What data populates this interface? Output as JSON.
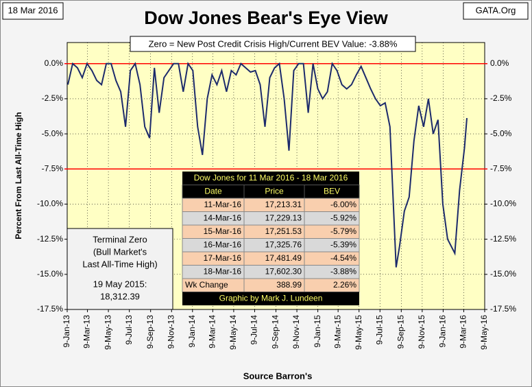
{
  "chart_data": {
    "type": "line",
    "title": "Dow Jones Bear's Eye View",
    "date_label": "18 Mar 2016",
    "source_label": "GATA.Org",
    "subtitle": "Zero = New Post Credit Crisis High/Current BEV Value:  -3.88%",
    "y_label": "Percent From Last All-Time High",
    "x_label": "Source Barron's",
    "ylim": [
      -17.5,
      1.5
    ],
    "yticks": [
      {
        "value": 0,
        "label": "0.0%"
      },
      {
        "value": -2.5,
        "label": "-2.5%"
      },
      {
        "value": -5,
        "label": "-5.0%"
      },
      {
        "value": -7.5,
        "label": "-7.5%"
      },
      {
        "value": -10,
        "label": "-10.0%"
      },
      {
        "value": -12.5,
        "label": "-12.5%"
      },
      {
        "value": -15,
        "label": "-15.0%"
      },
      {
        "value": -17.5,
        "label": "-17.5%"
      }
    ],
    "xlim": [
      "2013-01-09",
      "2016-05-09"
    ],
    "xticks": [
      {
        "value": "2013-01-09",
        "label": "9-Jan-13"
      },
      {
        "value": "2013-03-09",
        "label": "9-Mar-13"
      },
      {
        "value": "2013-05-09",
        "label": "9-May-13"
      },
      {
        "value": "2013-07-09",
        "label": "9-Jul-13"
      },
      {
        "value": "2013-09-09",
        "label": "9-Sep-13"
      },
      {
        "value": "2013-11-09",
        "label": "9-Nov-13"
      },
      {
        "value": "2014-01-09",
        "label": "9-Jan-14"
      },
      {
        "value": "2014-03-09",
        "label": "9-Mar-14"
      },
      {
        "value": "2014-05-09",
        "label": "9-May-14"
      },
      {
        "value": "2014-07-09",
        "label": "9-Jul-14"
      },
      {
        "value": "2014-09-09",
        "label": "9-Sep-14"
      },
      {
        "value": "2014-11-09",
        "label": "9-Nov-14"
      },
      {
        "value": "2015-01-09",
        "label": "9-Jan-15"
      },
      {
        "value": "2015-03-09",
        "label": "9-Mar-15"
      },
      {
        "value": "2015-05-09",
        "label": "9-May-15"
      },
      {
        "value": "2015-07-09",
        "label": "9-Jul-15"
      },
      {
        "value": "2015-09-09",
        "label": "9-Sep-15"
      },
      {
        "value": "2015-11-09",
        "label": "9-Nov-15"
      },
      {
        "value": "2016-01-09",
        "label": "9-Jan-16"
      },
      {
        "value": "2016-03-09",
        "label": "9-Mar-16"
      },
      {
        "value": "2016-05-09",
        "label": "9-May-16"
      }
    ],
    "hlines": [
      0,
      -7.5
    ],
    "hline_color": "#ff0000",
    "plot_background": "#ffffc4",
    "x": [
      "2013-01-11",
      "2013-01-25",
      "2013-02-08",
      "2013-02-22",
      "2013-03-08",
      "2013-03-22",
      "2013-04-05",
      "2013-04-19",
      "2013-05-03",
      "2013-05-17",
      "2013-05-31",
      "2013-06-14",
      "2013-06-28",
      "2013-07-12",
      "2013-07-26",
      "2013-08-09",
      "2013-08-23",
      "2013-09-06",
      "2013-09-20",
      "2013-10-04",
      "2013-10-18",
      "2013-11-01",
      "2013-11-15",
      "2013-11-29",
      "2013-12-13",
      "2013-12-27",
      "2014-01-10",
      "2014-01-24",
      "2014-02-07",
      "2014-02-21",
      "2014-03-07",
      "2014-03-21",
      "2014-04-04",
      "2014-04-18",
      "2014-05-02",
      "2014-05-16",
      "2014-05-30",
      "2014-06-13",
      "2014-06-27",
      "2014-07-11",
      "2014-07-25",
      "2014-08-08",
      "2014-08-22",
      "2014-09-05",
      "2014-09-19",
      "2014-10-03",
      "2014-10-17",
      "2014-10-31",
      "2014-11-14",
      "2014-11-28",
      "2014-12-12",
      "2014-12-26",
      "2015-01-09",
      "2015-01-23",
      "2015-02-06",
      "2015-02-20",
      "2015-03-06",
      "2015-03-20",
      "2015-04-03",
      "2015-04-17",
      "2015-05-01",
      "2015-05-15",
      "2015-05-29",
      "2015-06-12",
      "2015-06-26",
      "2015-07-10",
      "2015-07-24",
      "2015-08-07",
      "2015-08-25",
      "2015-09-04",
      "2015-09-18",
      "2015-10-02",
      "2015-10-16",
      "2015-10-30",
      "2015-11-13",
      "2015-11-27",
      "2015-12-11",
      "2015-12-25",
      "2016-01-08",
      "2016-01-22",
      "2016-02-12",
      "2016-02-26",
      "2016-03-11",
      "2016-03-18"
    ],
    "series": [
      {
        "name": "BEV",
        "color": "#1c2a6b",
        "values": [
          -1.5,
          0,
          -0.3,
          -1.0,
          0,
          -0.5,
          -1.2,
          -1.5,
          0,
          0,
          -1.2,
          -2.0,
          -4.5,
          -0.5,
          0,
          -1.5,
          -4.5,
          -5.3,
          -0.3,
          -3.5,
          -1.0,
          -0.5,
          0,
          0,
          -2.0,
          0,
          -0.5,
          -4.5,
          -6.5,
          -2.5,
          -0.8,
          -1.5,
          -0.5,
          -2.0,
          -0.5,
          -0.8,
          0,
          -0.3,
          -0.6,
          -0.5,
          -1.5,
          -4.5,
          -1.0,
          -0.3,
          0,
          -2.5,
          -6.2,
          -0.5,
          0,
          0,
          -3.5,
          0,
          -1.8,
          -2.5,
          -2.0,
          0,
          -0.5,
          -1.5,
          -1.8,
          -1.5,
          -0.8,
          -0.2,
          -1.0,
          -1.8,
          -2.5,
          -3.0,
          -2.8,
          -4.5,
          -14.5,
          -13.0,
          -10.5,
          -9.5,
          -5.5,
          -3.0,
          -4.5,
          -2.5,
          -5.0,
          -4.0,
          -10.0,
          -12.5,
          -13.5,
          -9.0,
          -6.0,
          -3.88
        ]
      }
    ],
    "terminal_box": {
      "lines": [
        "Terminal Zero",
        "(Bull Market's",
        "Last All-Time High)"
      ],
      "date": "19 May 2015:",
      "value": "18,312.39"
    },
    "table": {
      "title": "Dow Jones for 11 Mar 2016 - 18 Mar 2016",
      "columns": [
        "Date",
        "Price",
        "BEV"
      ],
      "rows": [
        [
          "11-Mar-16",
          "17,213.31",
          "-6.00%"
        ],
        [
          "14-Mar-16",
          "17,229.13",
          "-5.92%"
        ],
        [
          "15-Mar-16",
          "17,251.53",
          "-5.79%"
        ],
        [
          "16-Mar-16",
          "17,325.76",
          "-5.39%"
        ],
        [
          "17-Mar-16",
          "17,481.49",
          "-4.54%"
        ],
        [
          "18-Mar-16",
          "17,602.30",
          "-3.88%"
        ],
        [
          "Wk Change",
          "388.99",
          "2.26%"
        ]
      ],
      "footer": "Graphic by Mark J. Lundeen"
    }
  }
}
